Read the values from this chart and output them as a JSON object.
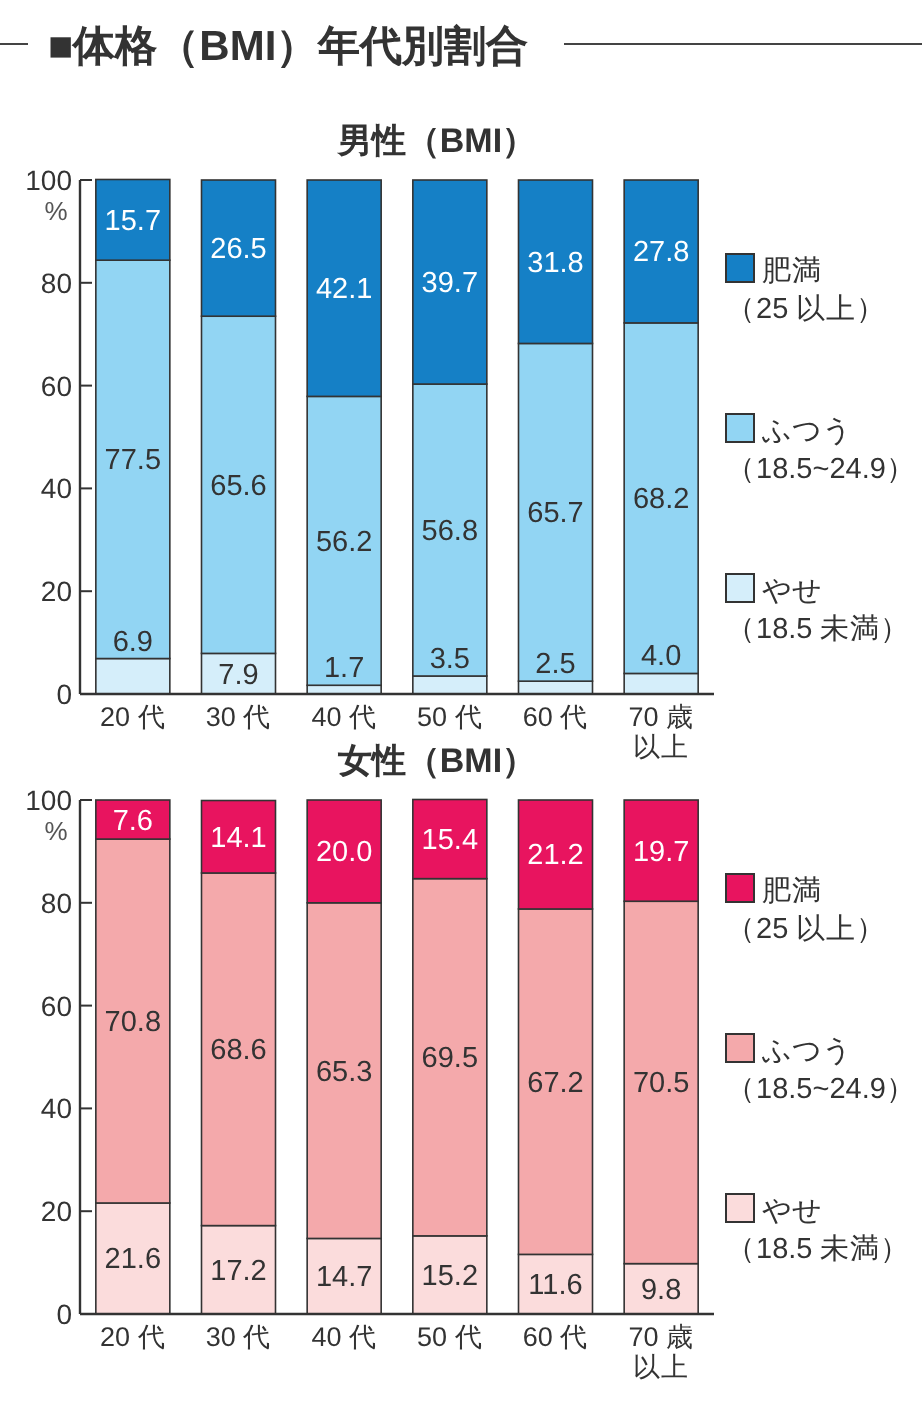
{
  "chart_data": [
    {
      "type": "bar",
      "title": "■体格（BMI）年代別割合",
      "subtitle": "男性（BMI）",
      "ylabel": "%",
      "stacked": true,
      "categories": [
        "20 代",
        "30 代",
        "40 代",
        "50 代",
        "60 代",
        "70 歳以上"
      ],
      "ylim": [
        0,
        100
      ],
      "yticks": [
        0,
        20,
        40,
        60,
        80,
        100
      ],
      "legend": "right",
      "series": [
        {
          "name": "やせ（18.5 未満）",
          "color": "#d5eefa",
          "values": [
            6.9,
            7.9,
            1.7,
            3.5,
            2.5,
            4.0
          ],
          "value_labels": [
            "6.9",
            "7.9",
            "1.7",
            "3.5",
            "2.5",
            "4.0"
          ]
        },
        {
          "name": "ふつう（18.5~24.9）",
          "color": "#92d5f3",
          "values": [
            77.5,
            65.6,
            56.2,
            56.8,
            65.7,
            68.2
          ],
          "value_labels": [
            "77.5",
            "65.6",
            "56.2",
            "56.8",
            "65.7",
            "68.2"
          ]
        },
        {
          "name": "肥満（25 以上）",
          "color": "#1580c6",
          "values": [
            15.7,
            26.5,
            42.1,
            39.7,
            31.8,
            27.8
          ],
          "value_labels": [
            "15.7",
            "26.5",
            "42.1",
            "39.7",
            "31.8",
            "27.8"
          ]
        }
      ]
    },
    {
      "type": "bar",
      "title": "女性（BMI）",
      "ylabel": "%",
      "stacked": true,
      "categories": [
        "20 代",
        "30 代",
        "40 代",
        "50 代",
        "60 代",
        "70 歳以上"
      ],
      "ylim": [
        0,
        100
      ],
      "yticks": [
        0,
        20,
        40,
        60,
        80,
        100
      ],
      "legend": "right",
      "series": [
        {
          "name": "やせ（18.5 未満）",
          "color": "#fbdcdc",
          "values": [
            21.6,
            17.2,
            14.7,
            15.2,
            11.6,
            9.8
          ],
          "value_labels": [
            "21.6",
            "17.2",
            "14.7",
            "15.2",
            "11.6",
            "9.8"
          ]
        },
        {
          "name": "ふつう（18.5~24.9）",
          "color": "#f4a9ab",
          "values": [
            70.8,
            68.6,
            65.3,
            69.5,
            67.2,
            70.5
          ],
          "value_labels": [
            "70.8",
            "68.6",
            "65.3",
            "69.5",
            "67.2",
            "70.5"
          ]
        },
        {
          "name": "肥満（25 以上）",
          "color": "#e8145f",
          "values": [
            7.6,
            14.1,
            20.0,
            15.4,
            21.2,
            19.7
          ],
          "value_labels": [
            "7.6",
            "14.1",
            "20.0",
            "15.4",
            "21.2",
            "19.7"
          ]
        }
      ]
    }
  ]
}
